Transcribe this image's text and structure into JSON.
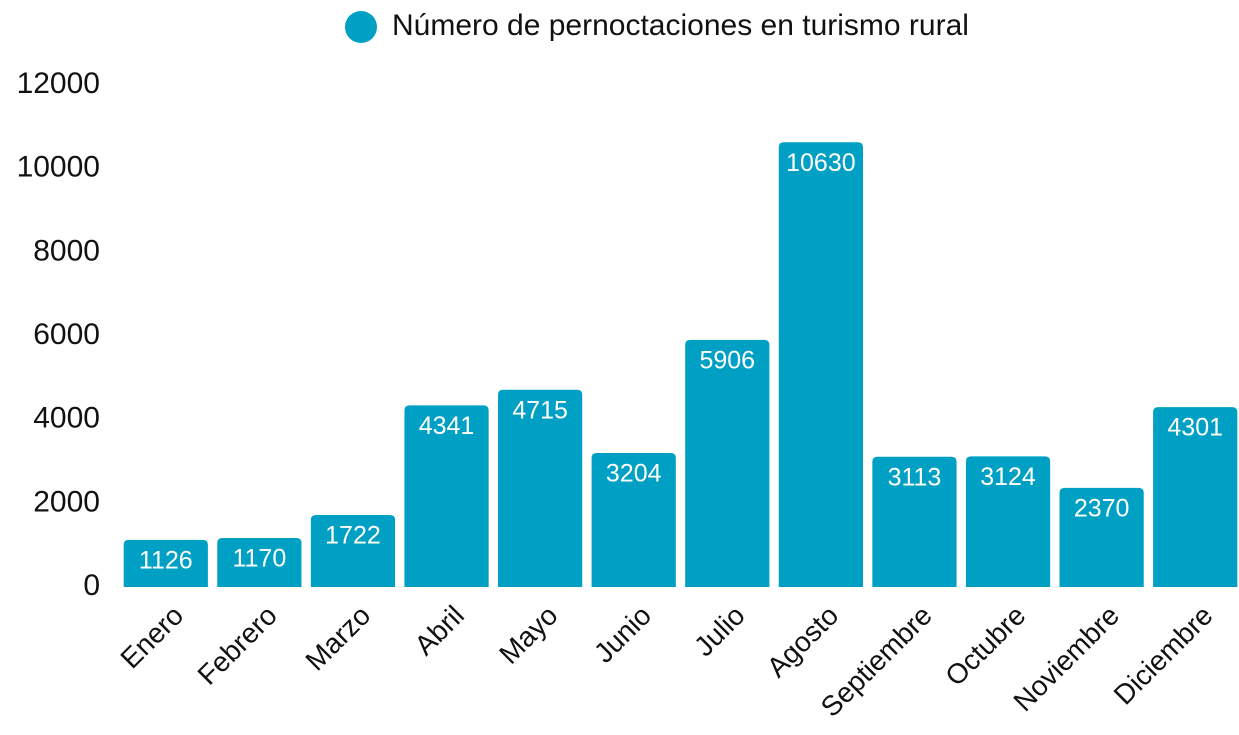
{
  "chart_data": {
    "type": "bar",
    "categories": [
      "Enero",
      "Febrero",
      "Marzo",
      "Abril",
      "Mayo",
      "Junio",
      "Julio",
      "Agosto",
      "Septiembre",
      "Octubre",
      "Noviembre",
      "Diciembre"
    ],
    "series": [
      {
        "name": "Número de pernoctaciones en turismo rural",
        "color": "#00a0c4",
        "values": [
          1126,
          1170,
          1722,
          4341,
          4715,
          3204,
          5906,
          10630,
          3113,
          3124,
          2370,
          4301
        ]
      }
    ],
    "ylim": [
      0,
      12000
    ],
    "yticks": [
      0,
      2000,
      4000,
      6000,
      8000,
      10000,
      12000
    ],
    "grid": false,
    "legend": "top"
  }
}
